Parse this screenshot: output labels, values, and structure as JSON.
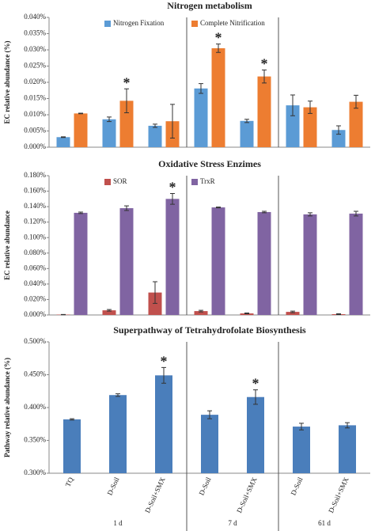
{
  "chart_data": [
    {
      "type": "bar",
      "title": "Nitrogen metabolism",
      "ylabel": "EC relative abundance (%)",
      "ylim": [
        0,
        0.04
      ],
      "yticks": [
        {
          "value": 0,
          "label": "0.000%"
        },
        {
          "value": 0.005,
          "label": "0.005%"
        },
        {
          "value": 0.01,
          "label": "0.010%"
        },
        {
          "value": 0.015,
          "label": "0.015%"
        },
        {
          "value": 0.02,
          "label": "0.020%"
        },
        {
          "value": 0.025,
          "label": "0.025%"
        },
        {
          "value": 0.03,
          "label": "0.030%"
        },
        {
          "value": 0.035,
          "label": "0.035%"
        },
        {
          "value": 0.04,
          "label": "0.040%"
        }
      ],
      "series": [
        {
          "name": "Nitrogen Fixation",
          "color": "#5b9bd5",
          "values": [
            0.0031,
            0.0086,
            0.0066,
            0.0181,
            0.0081,
            0.0129,
            0.0053
          ],
          "errors": [
            0.0001,
            0.0007,
            0.0005,
            0.0015,
            0.0005,
            0.0032,
            0.0013
          ],
          "markers": [
            null,
            null,
            null,
            null,
            null,
            null,
            null
          ]
        },
        {
          "name": "Complete Nitrification",
          "color": "#ed7d31",
          "values": [
            0.0104,
            0.0143,
            0.008,
            0.0305,
            0.0218,
            0.0123,
            0.014
          ],
          "errors": [
            0.0001,
            0.0037,
            0.0052,
            0.0013,
            0.002,
            0.0019,
            0.002
          ],
          "markers": [
            null,
            "*",
            null,
            "*",
            "*",
            null,
            null
          ]
        }
      ]
    },
    {
      "type": "bar",
      "title": "Oxidative Stress Enzimes",
      "ylabel": "EC relative abundance",
      "ylim": [
        0,
        0.18
      ],
      "yticks": [
        {
          "value": 0,
          "label": "0.000%"
        },
        {
          "value": 0.02,
          "label": "0.020%"
        },
        {
          "value": 0.04,
          "label": "0.040%"
        },
        {
          "value": 0.06,
          "label": "0.060%"
        },
        {
          "value": 0.08,
          "label": "0.080%"
        },
        {
          "value": 0.1,
          "label": "0.100%"
        },
        {
          "value": 0.12,
          "label": "0.120%"
        },
        {
          "value": 0.14,
          "label": "0.140%"
        },
        {
          "value": 0.16,
          "label": "0.160%"
        },
        {
          "value": 0.18,
          "label": "0.180%"
        }
      ],
      "series": [
        {
          "name": "SOR",
          "color": "#c0504d",
          "values": [
            0.0005,
            0.006,
            0.029,
            0.005,
            0.002,
            0.004,
            0.001
          ],
          "errors": [
            0.0002,
            0.001,
            0.014,
            0.001,
            0.0005,
            0.001,
            0.0005
          ],
          "markers": [
            null,
            null,
            null,
            null,
            null,
            null,
            null
          ]
        },
        {
          "name": "TrxR",
          "color": "#8064a2",
          "values": [
            0.132,
            0.138,
            0.15,
            0.139,
            0.133,
            0.13,
            0.131
          ],
          "errors": [
            0.001,
            0.003,
            0.007,
            0.0005,
            0.001,
            0.002,
            0.003
          ],
          "markers": [
            null,
            null,
            "*",
            null,
            null,
            null,
            null
          ]
        }
      ]
    },
    {
      "type": "bar",
      "title": "Superpathway of Tetrahydrofolate Biosynthesis",
      "ylabel": "Pathway relative abundance (%)",
      "ylim": [
        0.3,
        0.5
      ],
      "yticks": [
        {
          "value": 0.3,
          "label": "0.300%"
        },
        {
          "value": 0.35,
          "label": "0.350%"
        },
        {
          "value": 0.4,
          "label": "0.400%"
        },
        {
          "value": 0.45,
          "label": "0.450%"
        },
        {
          "value": 0.5,
          "label": "0.500%"
        }
      ],
      "categories": [
        "TQ",
        "D-Soil",
        "D-Soil+SMX",
        "D-Soil",
        "D-Soil+SMX",
        "D-Soil",
        "D-Soil+SMX"
      ],
      "groups": [
        "1 d",
        "7 d",
        "61 d"
      ],
      "group_sizes": [
        3,
        2,
        2
      ],
      "series": [
        {
          "color": "#4a7ebb",
          "values": [
            0.382,
            0.419,
            0.449,
            0.389,
            0.416,
            0.371,
            0.373
          ],
          "errors": [
            0.001,
            0.002,
            0.012,
            0.006,
            0.011,
            0.005,
            0.004
          ],
          "markers": [
            null,
            null,
            "*",
            null,
            "*",
            null,
            null
          ]
        }
      ]
    }
  ]
}
